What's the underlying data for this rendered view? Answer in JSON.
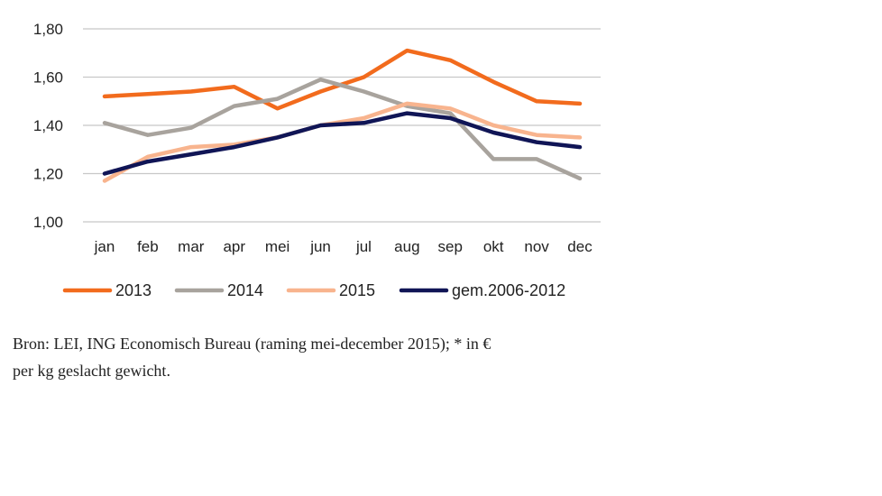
{
  "chart_data": {
    "type": "line",
    "categories": [
      "jan",
      "feb",
      "mar",
      "apr",
      "mei",
      "jun",
      "jul",
      "aug",
      "sep",
      "okt",
      "nov",
      "dec"
    ],
    "ylim": [
      1.0,
      1.8
    ],
    "yticks": [
      "1,00",
      "1,20",
      "1,40",
      "1,60",
      "1,80"
    ],
    "yticks_values": [
      1.0,
      1.2,
      1.4,
      1.6,
      1.8
    ],
    "grid": true,
    "legend_position": "bottom",
    "series": [
      {
        "name": "2013",
        "color": "#f26b1d",
        "values": [
          1.52,
          1.53,
          1.54,
          1.56,
          1.47,
          1.54,
          1.6,
          1.71,
          1.67,
          1.58,
          1.5,
          1.49
        ]
      },
      {
        "name": "2014",
        "color": "#a8a39d",
        "values": [
          1.41,
          1.36,
          1.39,
          1.48,
          1.51,
          1.59,
          1.54,
          1.48,
          1.45,
          1.26,
          1.26,
          1.18
        ]
      },
      {
        "name": "2015",
        "color": "#f8b48e",
        "values": [
          1.17,
          1.27,
          1.31,
          1.32,
          1.35,
          1.4,
          1.43,
          1.49,
          1.47,
          1.4,
          1.36,
          1.35
        ]
      },
      {
        "name": "gem.2006-2012",
        "color": "#101556",
        "values": [
          1.2,
          1.25,
          1.28,
          1.31,
          1.35,
          1.4,
          1.41,
          1.45,
          1.43,
          1.37,
          1.33,
          1.31
        ]
      }
    ]
  },
  "source": {
    "line1": "Bron: LEI, ING Economisch Bureau (raming mei-december 2015); * in €",
    "line2": "per kg geslacht gewicht."
  },
  "colors": {
    "title_accent": "#f26b1d",
    "grid": "#c8c8c8"
  }
}
